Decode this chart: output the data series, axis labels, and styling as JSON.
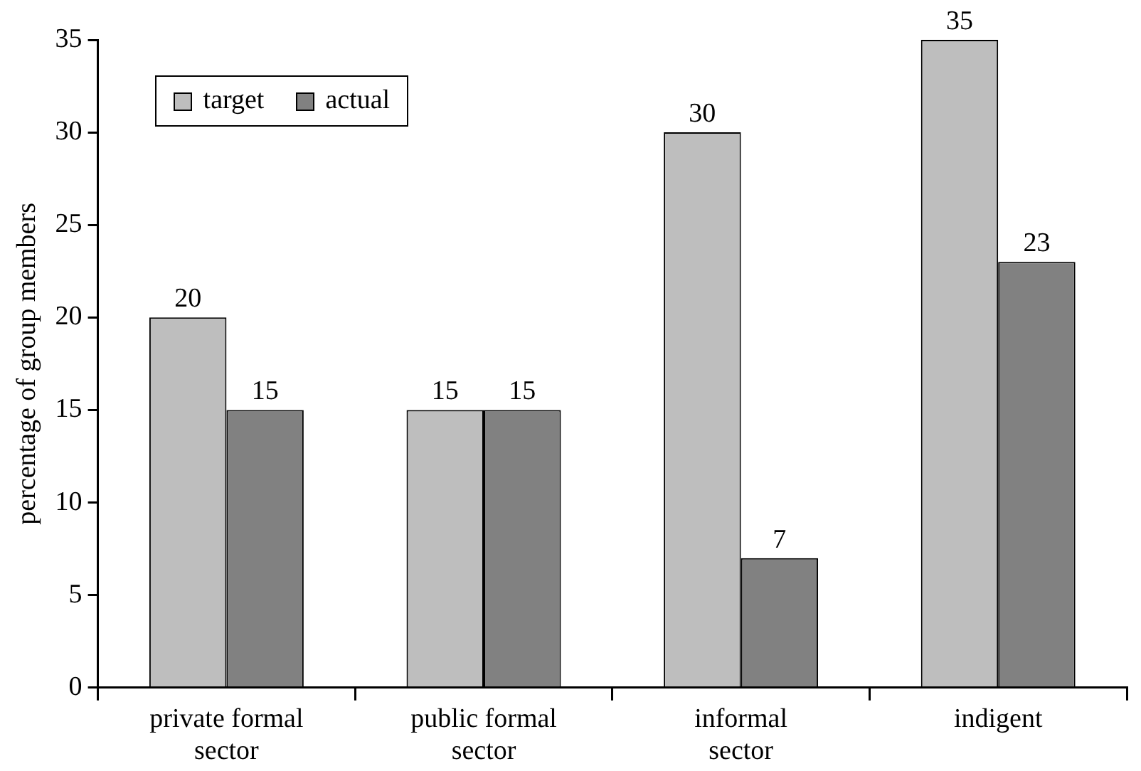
{
  "chart_data": {
    "type": "bar",
    "ylabel": "percentage of group members",
    "categories": [
      "private formal sector",
      "public formal sector",
      "informal sector",
      "indigent"
    ],
    "series": [
      {
        "name": "target",
        "color": "#bebebe",
        "values": [
          20,
          15,
          30,
          35
        ]
      },
      {
        "name": "actual",
        "color": "#818181",
        "values": [
          15,
          15,
          7,
          23
        ]
      }
    ],
    "ylim": [
      0,
      35
    ],
    "yticks": [
      0,
      5,
      10,
      15,
      20,
      25,
      30,
      35
    ],
    "grid": false,
    "legend": "top left",
    "data_labels": true
  }
}
